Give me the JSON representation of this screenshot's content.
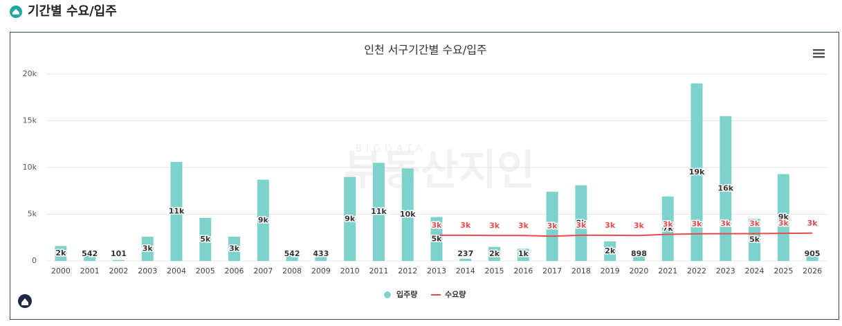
{
  "header": {
    "title": "기간별 수요/입주"
  },
  "chart_data": {
    "type": "bar_line",
    "title": "인천 서구기간별 수요/입주",
    "watermark": [
      "BIGDATA",
      "부동산지인"
    ],
    "categories": [
      "2000",
      "2001",
      "2002",
      "2003",
      "2004",
      "2005",
      "2006",
      "2007",
      "2008",
      "2009",
      "2010",
      "2011",
      "2012",
      "2013",
      "2014",
      "2015",
      "2016",
      "2017",
      "2018",
      "2019",
      "2020",
      "2021",
      "2022",
      "2023",
      "2024",
      "2025",
      "2026"
    ],
    "series": [
      {
        "name": "입주량",
        "type": "bar",
        "color": "#7dd3cb",
        "values": [
          1600,
          542,
          101,
          2600,
          10600,
          4600,
          2600,
          8700,
          542,
          433,
          9000,
          10500,
          9900,
          4700,
          237,
          1500,
          1300,
          7400,
          8100,
          2100,
          898,
          6900,
          19000,
          15500,
          4500,
          9300,
          905
        ],
        "value_labels": [
          "2k",
          "542",
          "101",
          "3k",
          "11k",
          "5k",
          "3k",
          "9k",
          "542",
          "433",
          "9k",
          "11k",
          "10k",
          "5k",
          "237",
          "2k",
          "1k",
          "7k",
          "8k",
          "2k",
          "898",
          "7k",
          "19k",
          "16k",
          "5k",
          "9k",
          "905"
        ]
      },
      {
        "name": "수요량",
        "type": "line",
        "color": "#e84a4a",
        "values": [
          null,
          null,
          null,
          null,
          null,
          null,
          null,
          null,
          null,
          null,
          null,
          null,
          null,
          2750,
          2750,
          2720,
          2720,
          2650,
          2750,
          2750,
          2720,
          2850,
          2900,
          2920,
          2930,
          2950,
          2980
        ],
        "value_labels": [
          null,
          null,
          null,
          null,
          null,
          null,
          null,
          null,
          null,
          null,
          null,
          null,
          null,
          "3k",
          "3k",
          "3k",
          "3k",
          "3k",
          "3k",
          "3k",
          "3k",
          "3k",
          "3k",
          "3k",
          "3k",
          "3k",
          "3k"
        ]
      }
    ],
    "ylim": [
      0,
      20000
    ],
    "yticks": [
      0,
      {
        "value": 5000,
        "label": "5k"
      },
      {
        "value": 10000,
        "label": "10k"
      },
      {
        "value": 15000,
        "label": "15k"
      },
      {
        "value": 20000,
        "label": "20k"
      }
    ],
    "grid": true,
    "legend": "bottom"
  }
}
